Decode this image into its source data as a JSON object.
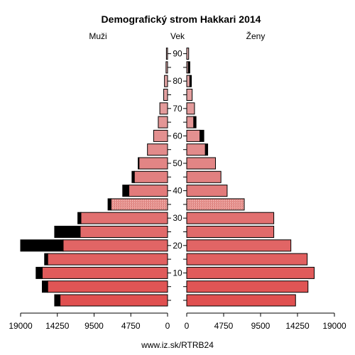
{
  "chart_data": {
    "type": "bar",
    "title": "Demografický strom Hakkari 2014",
    "left_label": "Muži",
    "center_label": "Vek",
    "right_label": "Ženy",
    "source": "www.iz.sk/RTRB24",
    "xlim": [
      0,
      19000
    ],
    "x_ticks_labels": [
      "19000",
      "14250",
      "9500",
      "4750",
      "0"
    ],
    "x_ticks_values": [
      19000,
      14250,
      9500,
      4750,
      0
    ],
    "age_tick_labels": [
      "10",
      "20",
      "30",
      "40",
      "50",
      "60",
      "70",
      "80",
      "90"
    ],
    "age_tick_groups": [
      2,
      4,
      6,
      8,
      10,
      12,
      14,
      16,
      18
    ],
    "age_groups": [
      "0-4",
      "5-9",
      "10-14",
      "15-19",
      "20-24",
      "25-29",
      "30-34",
      "35-39",
      "40-44",
      "45-49",
      "50-54",
      "55-59",
      "60-64",
      "65-69",
      "70-74",
      "75-79",
      "80-84",
      "85-89",
      "90-94"
    ],
    "men_total": [
      14600,
      16200,
      17000,
      15900,
      19000,
      14600,
      11600,
      7700,
      5800,
      4600,
      3800,
      2600,
      1800,
      1200,
      1000,
      500,
      400,
      200,
      150
    ],
    "men_excess": [
      700,
      700,
      800,
      400,
      5500,
      3300,
      400,
      400,
      800,
      300,
      100,
      0,
      0,
      0,
      0,
      0,
      0,
      0,
      0
    ],
    "women_total": [
      14000,
      15600,
      16400,
      15500,
      13400,
      11200,
      11200,
      7400,
      5200,
      4400,
      3700,
      2700,
      2200,
      1200,
      1000,
      700,
      600,
      400,
      250
    ],
    "women_excess": [
      0,
      0,
      0,
      0,
      0,
      0,
      0,
      0,
      0,
      0,
      0,
      300,
      500,
      300,
      0,
      0,
      200,
      200,
      0
    ],
    "colors": {
      "excess": "#000000",
      "outline": "#000000",
      "pattern_group": "35-39"
    }
  }
}
